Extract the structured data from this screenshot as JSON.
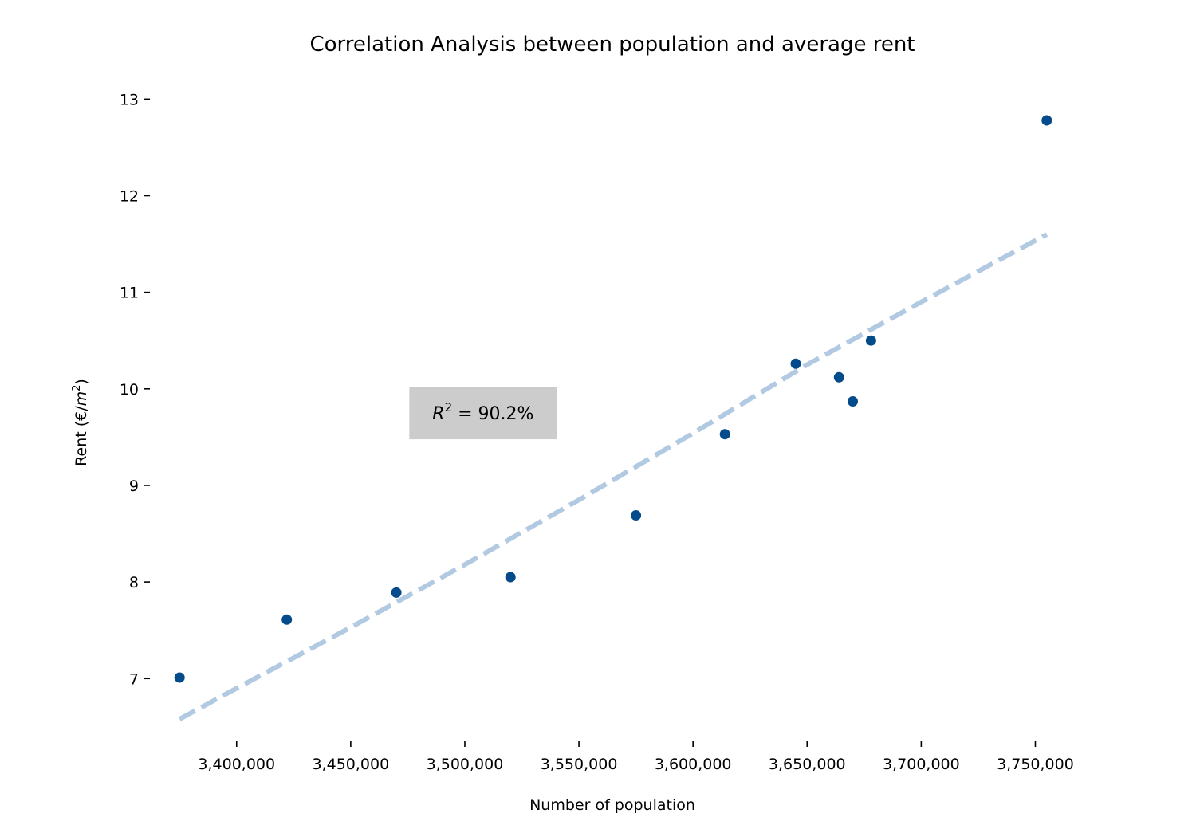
{
  "chart_data": {
    "type": "scatter",
    "title": "Correlation Analysis between population and average rent",
    "xlabel": "Number of population",
    "ylabel": "Rent (€/m²)",
    "ylabel_main": "Rent (€/",
    "ylabel_var": "m",
    "ylabel_sup": "2",
    "ylabel_close": ")",
    "xlim": [
      3362000,
      3768000
    ],
    "ylim": [
      6.35,
      13.3
    ],
    "x_ticks": [
      3400000,
      3450000,
      3500000,
      3550000,
      3600000,
      3650000,
      3700000,
      3750000
    ],
    "x_tick_labels": [
      "3,400,000",
      "3,450,000",
      "3,500,000",
      "3,550,000",
      "3,600,000",
      "3,650,000",
      "3,700,000",
      "3,750,000"
    ],
    "y_ticks": [
      7,
      8,
      9,
      10,
      11,
      12,
      13
    ],
    "y_tick_labels": [
      "7",
      "8",
      "9",
      "10",
      "11",
      "12",
      "13"
    ],
    "grid": false,
    "points": [
      {
        "x": 3375000,
        "y": 7.01
      },
      {
        "x": 3422000,
        "y": 7.61
      },
      {
        "x": 3470000,
        "y": 7.89
      },
      {
        "x": 3520000,
        "y": 8.05
      },
      {
        "x": 3575000,
        "y": 8.69
      },
      {
        "x": 3614000,
        "y": 9.53
      },
      {
        "x": 3645000,
        "y": 10.26
      },
      {
        "x": 3664000,
        "y": 10.12
      },
      {
        "x": 3670000,
        "y": 9.87
      },
      {
        "x": 3678000,
        "y": 10.5
      },
      {
        "x": 3755000,
        "y": 12.78
      }
    ],
    "trendline": {
      "style": "dashed",
      "x": [
        3375000,
        3400000,
        3450000,
        3500000,
        3550000,
        3600000,
        3650000,
        3700000,
        3755000
      ],
      "y": [
        6.58,
        6.9,
        7.53,
        8.18,
        8.85,
        9.54,
        10.25,
        10.9,
        11.6
      ]
    },
    "annotation": {
      "r_symbol": "R",
      "r_exponent": "2",
      "text": " = 90.2%",
      "x": 3508000,
      "y": 9.75
    },
    "colors": {
      "points": "#034b8b",
      "trendline": "#b1c9e1",
      "annotation_box": "#cccccc"
    }
  }
}
